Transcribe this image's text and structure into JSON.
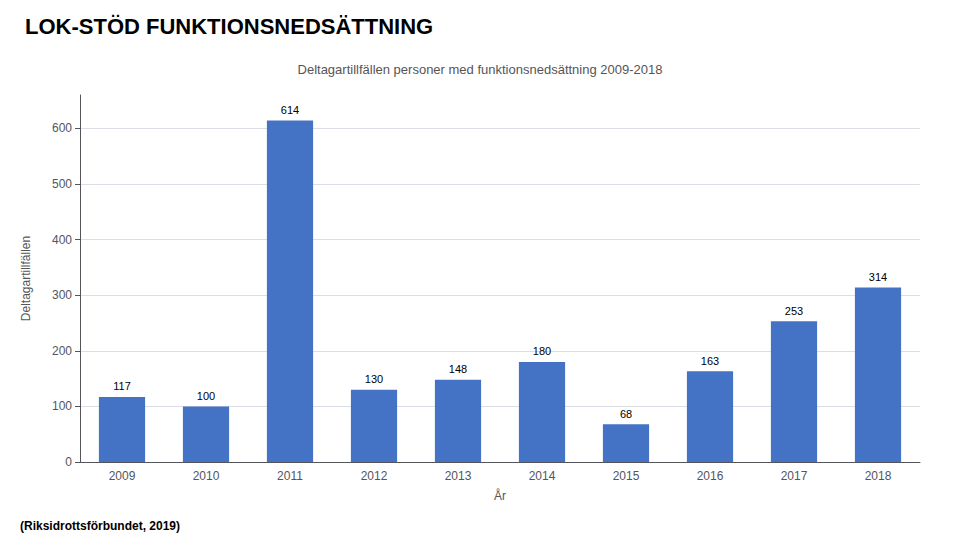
{
  "chart_data": {
    "type": "bar",
    "title": "LOK-STÖD FUNKTIONSNEDSÄTTNING",
    "subtitle": "Deltagartillfällen personer med funktionsnedsättning 2009-2018",
    "xlabel": "År",
    "ylabel": "Deltagartillfällen",
    "footer": "(Riksidrottsförbundet, 2019)",
    "categories": [
      "2009",
      "2010",
      "2011",
      "2012",
      "2013",
      "2014",
      "2015",
      "2016",
      "2017",
      "2018"
    ],
    "values": [
      117,
      100,
      614,
      130,
      148,
      180,
      68,
      163,
      253,
      314
    ],
    "color": "#4472C4",
    "ylim": [
      0,
      660
    ],
    "yticks": [
      0,
      100,
      200,
      300,
      400,
      500,
      600
    ],
    "grid": true,
    "data_labels": true
  }
}
